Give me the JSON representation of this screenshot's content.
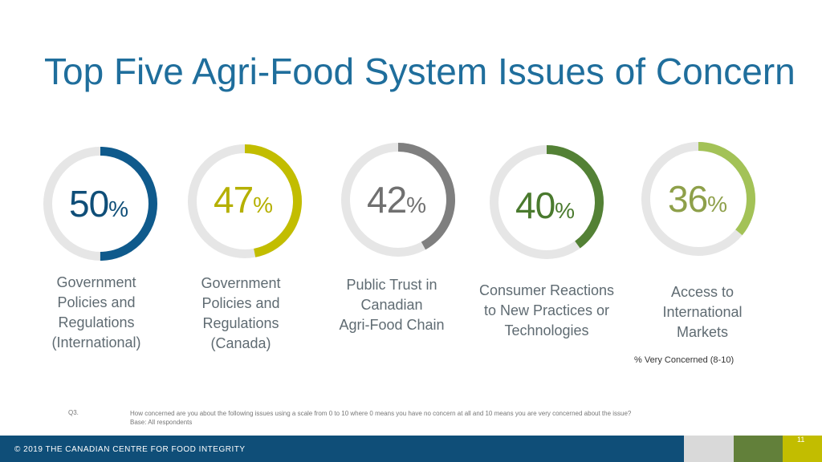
{
  "slide": {
    "title": "Top Five Agri-Food System Issues of Concern",
    "legend_note": "% Very Concerned (8-10)",
    "question_number": "Q3.",
    "question_text": "How concerned are you about the following issues using a scale from 0 to 10 where 0 means you have no concern at all and 10 means you are very concerned about the issue?",
    "base_text": "Base: All respondents",
    "footer_text": "© 2019 THE CANADIAN CENTRE FOR FOOD INTEGRITY",
    "page_number": "11"
  },
  "chart_data": {
    "type": "pie",
    "track_color": "#e6e6e6",
    "items": [
      {
        "value": 50,
        "value_text": "50",
        "unit": "%",
        "label": "Government\nPolicies and\nRegulations\n(International)",
        "color": "#0f5a8c",
        "text_color": "#0f4e78"
      },
      {
        "value": 47,
        "value_text": "47",
        "unit": "%",
        "label": "Government\nPolicies and\nRegulations\n(Canada)",
        "color": "#c2bd00",
        "text_color": "#b5b000"
      },
      {
        "value": 42,
        "value_text": "42",
        "unit": "%",
        "label": "Public Trust in\nCanadian\nAgri-Food Chain",
        "color": "#7f7f7f",
        "text_color": "#707070"
      },
      {
        "value": 40,
        "value_text": "40",
        "unit": "%",
        "label": "Consumer Reactions\nto New Practices or\nTechnologies",
        "color": "#538135",
        "text_color": "#4a7a2e"
      },
      {
        "value": 36,
        "value_text": "36",
        "unit": "%",
        "label": "Access to\nInternational\nMarkets",
        "color": "#a3c257",
        "text_color": "#8ea04a"
      }
    ]
  }
}
